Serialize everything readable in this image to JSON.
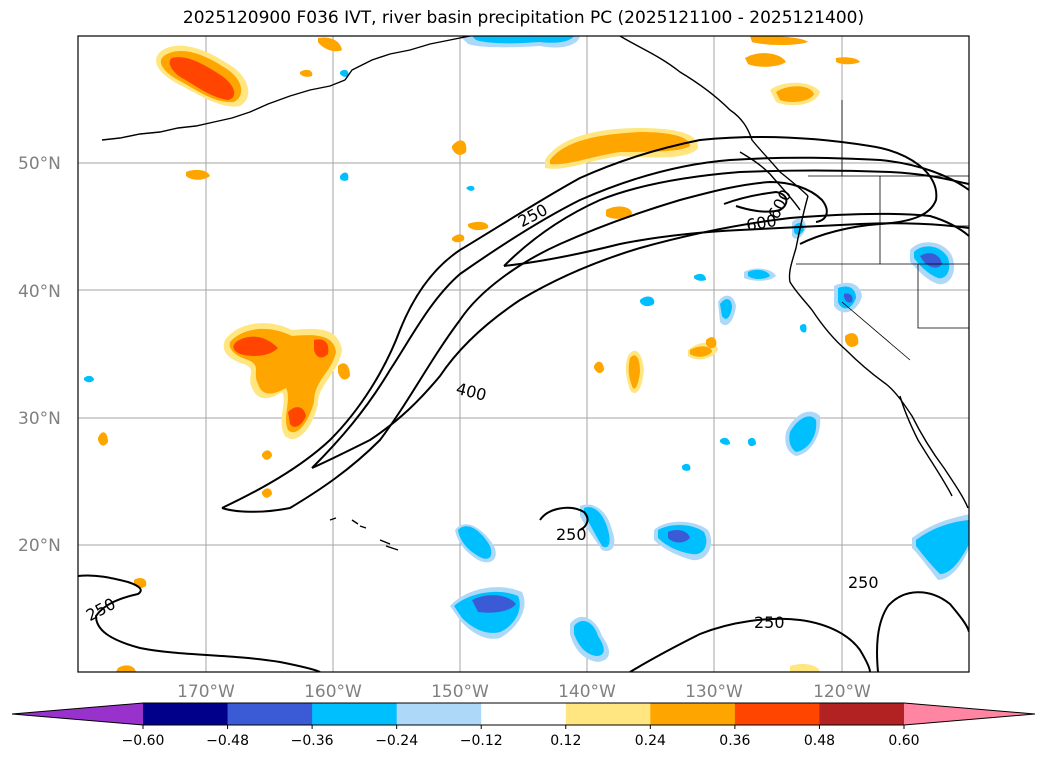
{
  "title": "2025120900 F036 IVT, river basin precipitation PC (2025121100 - 2025121400)",
  "map": {
    "lon_range": [
      -180,
      -110
    ],
    "lat_range": [
      10,
      60
    ],
    "lat_labels": [
      "20°N",
      "30°N",
      "40°N",
      "50°N"
    ],
    "lon_labels": [
      "170°W",
      "160°W",
      "150°W",
      "140°W",
      "130°W",
      "120°W"
    ],
    "contour_levels": [
      250,
      400,
      600
    ],
    "contour_labels": [
      {
        "text": "250",
        "where": "upper jet, north edge"
      },
      {
        "text": "400",
        "where": "mid jet"
      },
      {
        "text": "600",
        "where": "jet core near coast"
      },
      {
        "text": "600",
        "where": "jet core near coast (rotated)"
      },
      {
        "text": "250",
        "where": "south of Hawaii"
      },
      {
        "text": "250",
        "where": "southwest corner"
      },
      {
        "text": "250",
        "where": "southeast"
      },
      {
        "text": "250",
        "where": "southeast edge"
      }
    ]
  },
  "colorbar": {
    "ticks": [
      "−0.60",
      "−0.48",
      "−0.36",
      "−0.24",
      "−0.12",
      "0.12",
      "0.24",
      "0.36",
      "0.48",
      "0.60"
    ],
    "colors": [
      "#9932cc",
      "#00008b",
      "#3b5bd6",
      "#00bfff",
      "#add8f7",
      "#ffffff",
      "#ffe680",
      "#ffa500",
      "#ff4500",
      "#b22222",
      "#ff85a2"
    ]
  }
}
